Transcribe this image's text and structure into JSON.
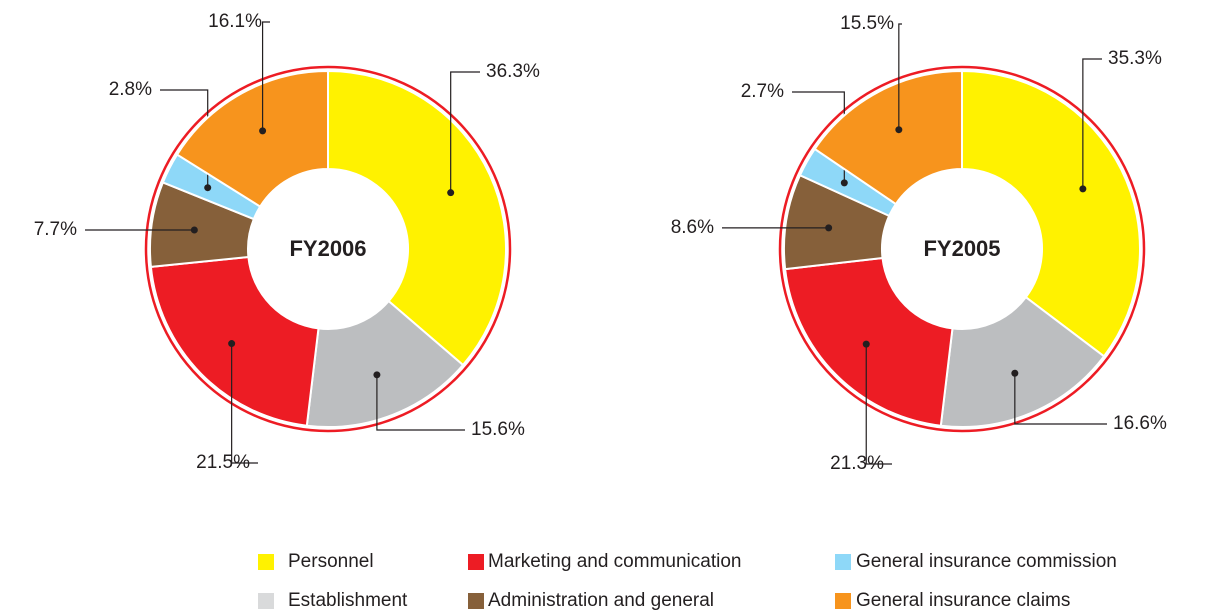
{
  "chart_data": [
    {
      "type": "donut",
      "title": "FY2006",
      "categories": [
        "Personnel",
        "Establishment",
        "Marketing and communication",
        "Administration and general",
        "General insurance commission",
        "General insurance claims"
      ],
      "values": [
        36.3,
        15.6,
        21.5,
        7.7,
        2.8,
        16.1
      ],
      "value_labels": [
        "36.3%",
        "15.6%",
        "21.5%",
        "7.7%",
        "2.8%",
        "16.1%"
      ],
      "colors": [
        "#fff200",
        "#bcbec0",
        "#ed1c24",
        "#86603a",
        "#8ed8f8",
        "#f7941d"
      ]
    },
    {
      "type": "donut",
      "title": "FY2005",
      "categories": [
        "Personnel",
        "Establishment",
        "Marketing and communication",
        "Administration and general",
        "General insurance commission",
        "General insurance claims"
      ],
      "values": [
        35.3,
        16.6,
        21.3,
        8.6,
        2.7,
        15.5
      ],
      "value_labels": [
        "35.3%",
        "16.6%",
        "21.3%",
        "8.6%",
        "2.7%",
        "15.5%"
      ],
      "colors": [
        "#fff200",
        "#bcbec0",
        "#ed1c24",
        "#86603a",
        "#8ed8f8",
        "#f7941d"
      ]
    }
  ]
}
